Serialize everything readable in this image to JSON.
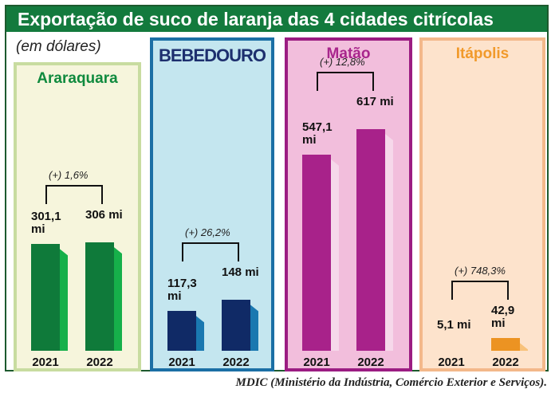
{
  "title": "Exportação de suco de laranja das 4 cidades citrícolas",
  "unit_note": "(em dólares)",
  "source": "MDIC (Ministério da Indústria, Comércio Exterior e Serviços).",
  "chart_data": [
    {
      "type": "bar",
      "title": "Araraquara",
      "categories": [
        "2021",
        "2022"
      ],
      "values": [
        301.1,
        306
      ],
      "value_labels": [
        "301,1 mi",
        "306 mi"
      ],
      "change_label": "(+) 1,6%",
      "color": "#0f7a3a",
      "side_color": "#16b04a",
      "background": "#f6f5dc",
      "border": "#c8dca0",
      "title_color": "#0f8a3e",
      "ylim": [
        0,
        700
      ]
    },
    {
      "type": "bar",
      "title": "BEBEDOURO",
      "categories": [
        "2021",
        "2022"
      ],
      "values": [
        117.3,
        148
      ],
      "value_labels": [
        "117,3 mi",
        "148 mi"
      ],
      "change_label": "(+) 26,2%",
      "color": "#102a66",
      "side_color": "#1a78b0",
      "background": "#c4e6ef",
      "border": "#1b6fa5",
      "title_color": "#1d2f6e",
      "ylim": [
        0,
        700
      ]
    },
    {
      "type": "bar",
      "title": "Matão",
      "categories": [
        "2021",
        "2022"
      ],
      "values": [
        547.1,
        617
      ],
      "value_labels": [
        "547,1 mi",
        "617 mi"
      ],
      "change_label": "(+) 12,8%",
      "color": "#a8228a",
      "side_color": "#f6d8ea",
      "background": "#f2bedc",
      "border": "#9b1c82",
      "title_color": "#a8268c",
      "ylim": [
        0,
        700
      ]
    },
    {
      "type": "bar",
      "title": "Itápolis",
      "categories": [
        "2021",
        "2022"
      ],
      "values": [
        5.1,
        42.9
      ],
      "value_labels": [
        "5,1 mi",
        "42,9 mi"
      ],
      "change_label": "(+) 748,3%",
      "color": "#ec9322",
      "side_color": "#f8c27a",
      "background": "#fde3cc",
      "border": "#f3b88a",
      "title_color": "#f19a2b",
      "ylim": [
        0,
        700
      ]
    }
  ]
}
